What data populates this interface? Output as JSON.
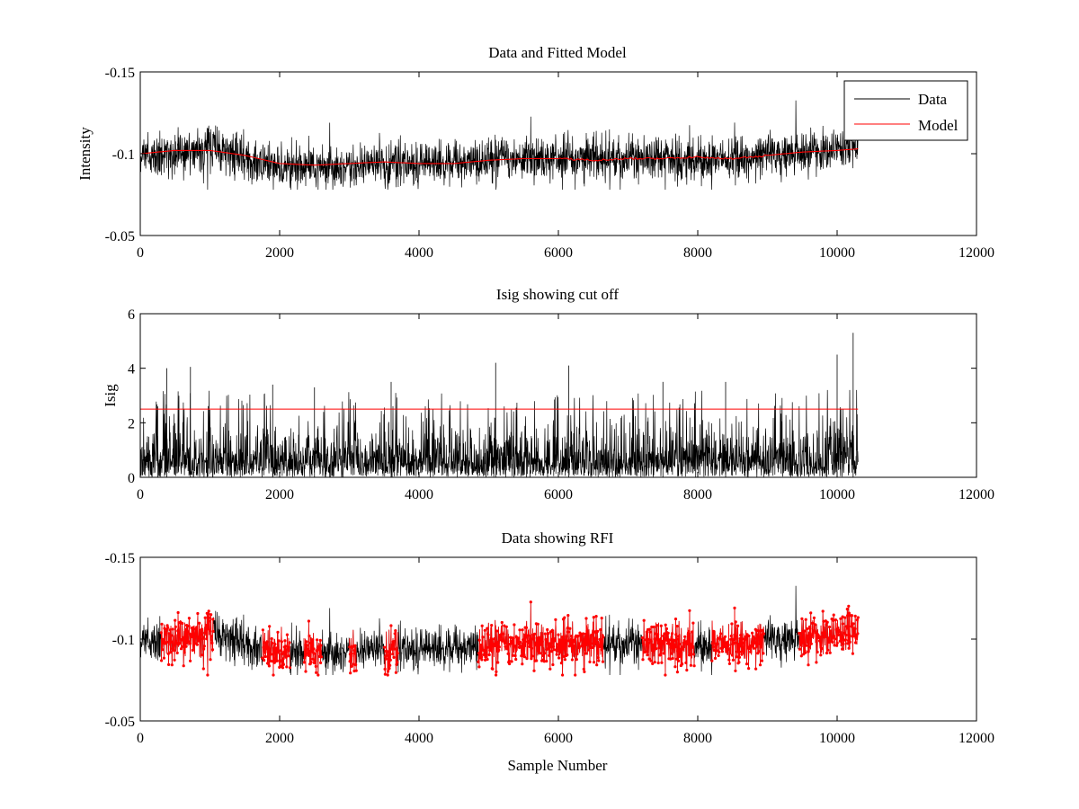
{
  "figure": {
    "background": "#ffffff",
    "axes_color": "#000000",
    "data_color": "#000000",
    "model_color": "#ff0000"
  },
  "chart_data": [
    {
      "id": "top",
      "type": "line",
      "title": "Data and Fitted Model",
      "xlabel": "",
      "ylabel": "Intensity",
      "xlim": [
        0,
        12000
      ],
      "ylim": [
        -0.15,
        -0.05
      ],
      "ylim_display": "reversed",
      "xticks": [
        0,
        2000,
        4000,
        6000,
        8000,
        10000,
        12000
      ],
      "xtick_labels": [
        "0",
        "2000",
        "4000",
        "6000",
        "8000",
        "10000",
        "12000"
      ],
      "yticks": [
        -0.05,
        -0.1,
        -0.15
      ],
      "ytick_labels": [
        "-0.05",
        "-0.1",
        "-0.15"
      ],
      "grid": false,
      "legend": {
        "placement": "top-right",
        "entries": [
          "Data",
          "Model"
        ]
      },
      "series": [
        {
          "name": "Data",
          "kind": "noisy_band",
          "color": "#000000",
          "x_range": [
            0,
            10300
          ],
          "center_x": [
            0,
            1000,
            2000,
            2500,
            3500,
            4500,
            5500,
            6500,
            7500,
            8500,
            9500,
            10300
          ],
          "center_y": [
            -0.098,
            -0.102,
            -0.093,
            -0.092,
            -0.094,
            -0.094,
            -0.098,
            -0.097,
            -0.098,
            -0.097,
            -0.101,
            -0.103
          ],
          "typical_spread": 0.012,
          "max_extent": [
            -0.078,
            -0.141
          ]
        },
        {
          "name": "Model",
          "kind": "smooth",
          "color": "#ff0000",
          "x": [
            0,
            500,
            1000,
            1500,
            2000,
            2500,
            3000,
            3500,
            4000,
            4500,
            5000,
            5500,
            6000,
            6500,
            7000,
            7500,
            8000,
            8500,
            9000,
            9500,
            10000,
            10300
          ],
          "y": [
            -0.1,
            -0.102,
            -0.102,
            -0.099,
            -0.094,
            -0.093,
            -0.094,
            -0.095,
            -0.094,
            -0.094,
            -0.096,
            -0.097,
            -0.097,
            -0.096,
            -0.097,
            -0.097,
            -0.098,
            -0.097,
            -0.099,
            -0.101,
            -0.102,
            -0.103
          ]
        }
      ]
    },
    {
      "id": "middle",
      "type": "line",
      "title": "Isig showing cut off",
      "xlabel": "",
      "ylabel": "Isig",
      "xlim": [
        0,
        12000
      ],
      "ylim": [
        0,
        6
      ],
      "xticks": [
        0,
        2000,
        4000,
        6000,
        8000,
        10000,
        12000
      ],
      "xtick_labels": [
        "0",
        "2000",
        "4000",
        "6000",
        "8000",
        "10000",
        "12000"
      ],
      "yticks": [
        0,
        2,
        4,
        6
      ],
      "ytick_labels": [
        "0",
        "2",
        "4",
        "6"
      ],
      "grid": false,
      "series": [
        {
          "kind": "spikes",
          "color": "#000000",
          "x_range": [
            0,
            10300
          ],
          "typical_level": 0.8,
          "peaks": [
            {
              "x": 250,
              "y": 2.6
            },
            {
              "x": 380,
              "y": 4.0
            },
            {
              "x": 720,
              "y": 4.05
            },
            {
              "x": 1900,
              "y": 3.4
            },
            {
              "x": 2500,
              "y": 3.3
            },
            {
              "x": 3600,
              "y": 3.5
            },
            {
              "x": 5100,
              "y": 4.2
            },
            {
              "x": 6150,
              "y": 4.1
            },
            {
              "x": 7500,
              "y": 3.5
            },
            {
              "x": 8400,
              "y": 3.5
            },
            {
              "x": 10000,
              "y": 4.5
            },
            {
              "x": 10230,
              "y": 5.3
            }
          ]
        },
        {
          "kind": "cutoff",
          "color": "#ff0000",
          "x": [
            0,
            10300
          ],
          "y": [
            2.5,
            2.5
          ]
        }
      ]
    },
    {
      "id": "bottom",
      "type": "line",
      "title": "Data showing RFI",
      "xlabel": "Sample Number",
      "ylabel": "",
      "xlim": [
        0,
        12000
      ],
      "ylim": [
        -0.15,
        -0.05
      ],
      "ylim_display": "reversed",
      "xticks": [
        0,
        2000,
        4000,
        6000,
        8000,
        10000,
        12000
      ],
      "xtick_labels": [
        "0",
        "2000",
        "4000",
        "6000",
        "8000",
        "10000",
        "12000"
      ],
      "yticks": [
        -0.05,
        -0.1,
        -0.15
      ],
      "ytick_labels": [
        "-0.05",
        "-0.1",
        "-0.15"
      ],
      "grid": false,
      "series": [
        {
          "kind": "noisy_band",
          "color": "#000000",
          "x_range": [
            0,
            10300
          ],
          "typical_spread": 0.012
        },
        {
          "kind": "flagged_markers",
          "color": "#ff0000",
          "marker": "dot",
          "segments": [
            [
              300,
              1050
            ],
            [
              1750,
              2150
            ],
            [
              2350,
              2600
            ],
            [
              3000,
              3100
            ],
            [
              3500,
              3700
            ],
            [
              4850,
              6650
            ],
            [
              7200,
              7950
            ],
            [
              8200,
              8950
            ],
            [
              9450,
              10300
            ]
          ]
        }
      ]
    }
  ]
}
